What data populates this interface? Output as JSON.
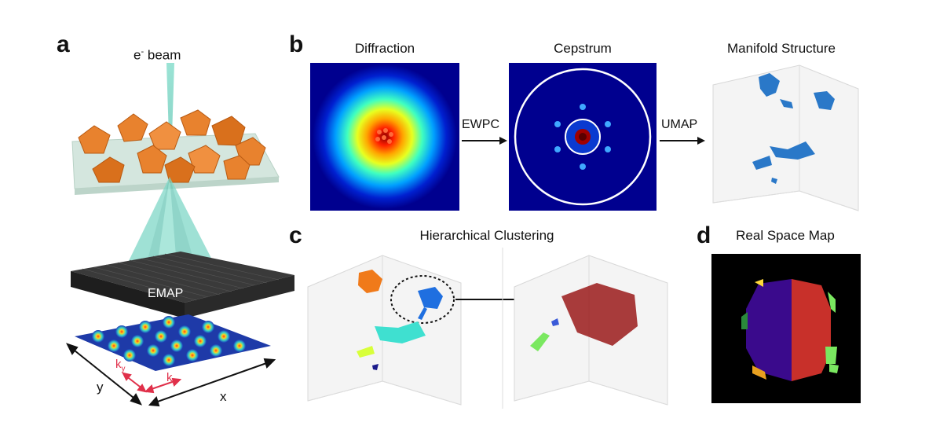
{
  "panels": {
    "a": {
      "letter": "a",
      "beam_label": "e",
      "beam_label_sup": "-",
      "beam_label_suffix": " beam",
      "detector_label": "EMAP",
      "axis_y": "y",
      "axis_x": "x",
      "k_y": "k",
      "k_y_sub": "y",
      "k_x": "k",
      "k_x_sub": "x"
    },
    "b": {
      "letter": "b",
      "diffraction_title": "Diffraction",
      "cepstrum_title": "Cepstrum",
      "manifold_title": "Manifold Structure",
      "arrow1_label": "EWPC",
      "arrow2_label": "UMAP"
    },
    "c": {
      "letter": "c",
      "title": "Hierarchical Clustering"
    },
    "d": {
      "letter": "d",
      "title": "Real Space Map"
    }
  },
  "colors": {
    "crystal": "#e8822e",
    "substrate": "#cfe3da",
    "beam": "#7fd8c8",
    "detector": "#2a2a2a",
    "jet_dark": "#00008f",
    "cluster_orange": "#f07a1a",
    "cluster_blue": "#1f6fe0",
    "cluster_cyan": "#3fe0d0",
    "cluster_red": "#9a1a1a",
    "map_purple": "#3a0a8c",
    "map_red": "#c8302a",
    "kx_ky_red": "#e0304a"
  }
}
